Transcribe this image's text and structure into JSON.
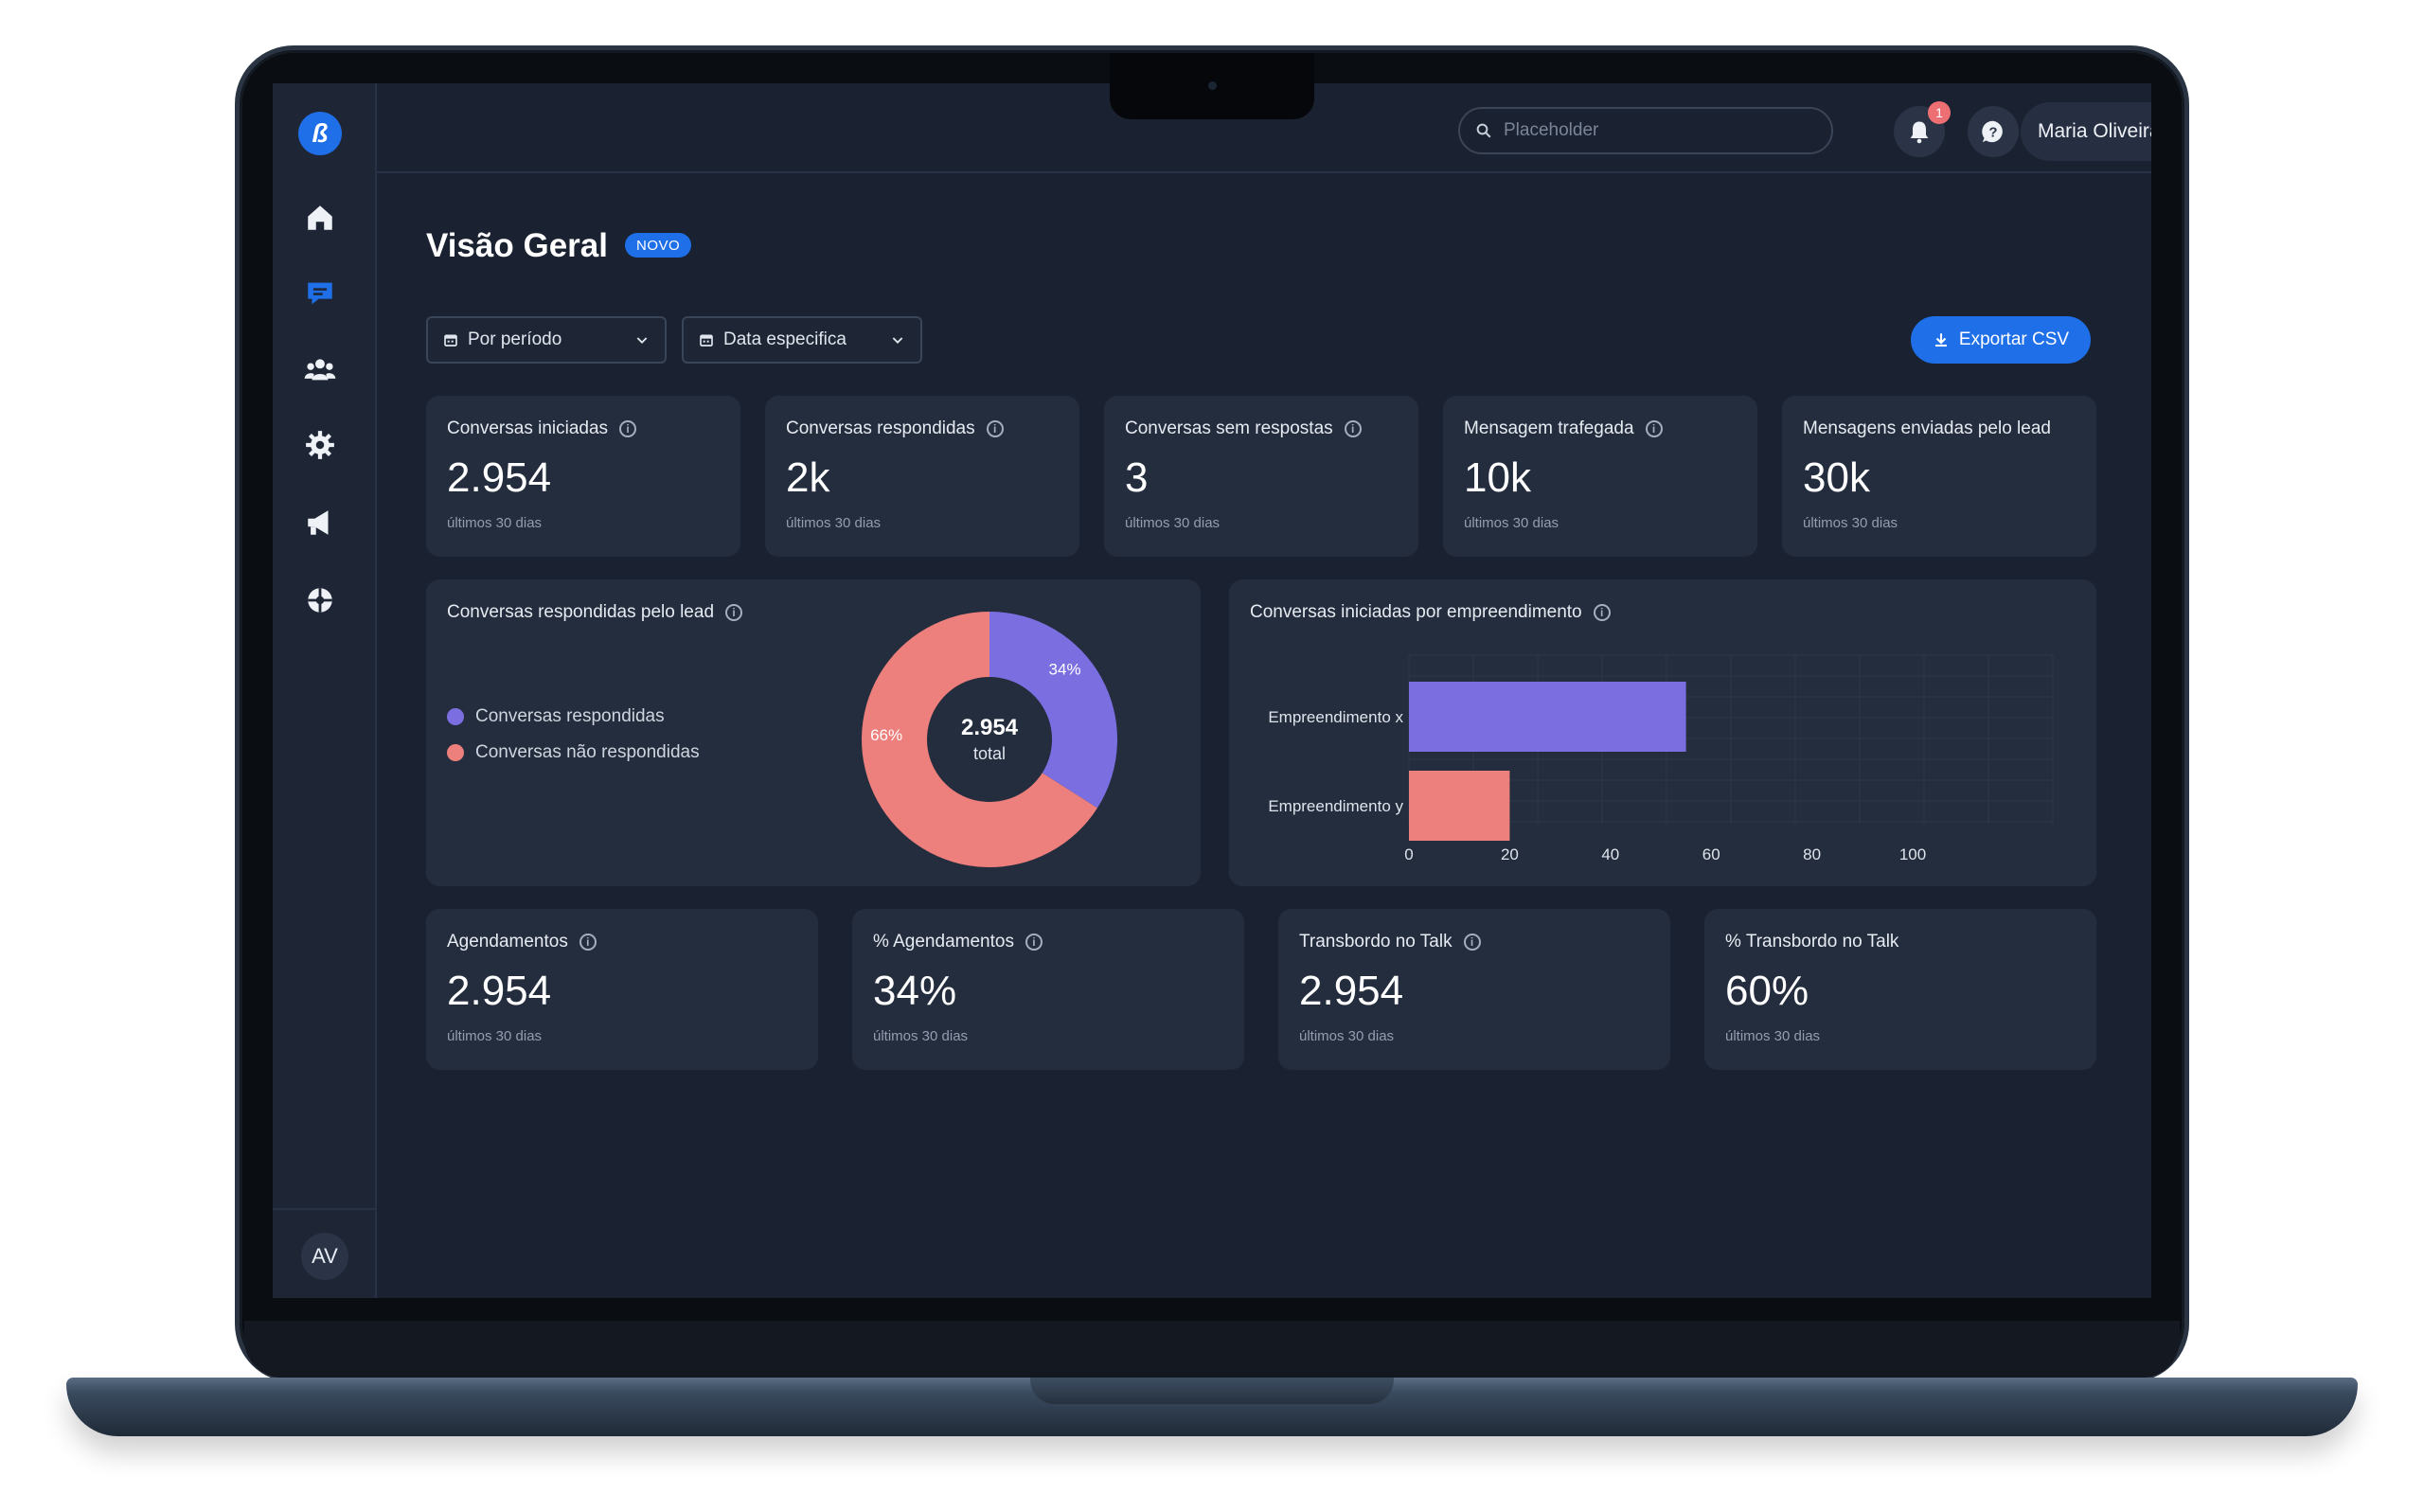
{
  "colors": {
    "accent": "#1f6fe8",
    "purple": "#7b6ee0",
    "salmon": "#ed7f7c",
    "background": "#1a2130",
    "card": "#242d3e"
  },
  "topbar": {
    "search_placeholder": "Placeholder",
    "notification_count": "1",
    "user_name": "Maria Oliveira"
  },
  "sidebar": {
    "items": [
      "home-icon",
      "chat-icon",
      "users-icon",
      "gear-icon",
      "megaphone-icon",
      "integrations-icon"
    ],
    "avatar_initials": "AV"
  },
  "header": {
    "title": "Visão Geral",
    "tag": "NOVO"
  },
  "filters": {
    "period_label": "Por período",
    "date_label": "Data especifica",
    "export_label": "Exportar CSV"
  },
  "kpis_top": [
    {
      "label": "Conversas iniciadas",
      "value": "2.954",
      "sub": "últimos 30 dias",
      "info": true
    },
    {
      "label": "Conversas respondidas",
      "value": "2k",
      "sub": "últimos 30 dias",
      "info": true
    },
    {
      "label": "Conversas sem respostas",
      "value": "3",
      "sub": "últimos 30 dias",
      "info": true
    },
    {
      "label": "Mensagem trafegada",
      "value": "10k",
      "sub": "últimos 30 dias",
      "info": true
    },
    {
      "label": "Mensagens enviadas pelo lead",
      "value": "30k",
      "sub": "últimos 30 dias",
      "info": false
    }
  ],
  "kpis_bottom": [
    {
      "label": "Agendamentos",
      "value": "2.954",
      "sub": "últimos 30 dias",
      "info": true
    },
    {
      "label": "% Agendamentos",
      "value": "34%",
      "sub": "últimos 30 dias",
      "info": true
    },
    {
      "label": "Transbordo no Talk",
      "value": "2.954",
      "sub": "últimos 30 dias",
      "info": true
    },
    {
      "label": "% Transbordo no Talk",
      "value": "60%",
      "sub": "últimos 30 dias",
      "info": false
    }
  ],
  "donut_panel": {
    "title": "Conversas respondidas pelo lead",
    "center_value": "2.954",
    "center_label": "total",
    "legend": [
      "Conversas respondidas",
      "Conversas não respondidas"
    ]
  },
  "bar_panel": {
    "title": "Conversas iniciadas por empreendimento"
  },
  "chart_data": [
    {
      "type": "pie",
      "labels": [
        "Conversas respondidas",
        "Conversas não respondidas"
      ],
      "values": [
        34,
        66
      ],
      "value_labels": [
        "34%",
        "66%"
      ],
      "colors": [
        "#7b6ee0",
        "#ed7f7c"
      ]
    },
    {
      "type": "bar",
      "orientation": "horizontal",
      "categories": [
        "Empreendimento x",
        "Empreendimento y"
      ],
      "values": [
        55,
        20
      ],
      "colors": [
        "#7b6ee0",
        "#ed7f7c"
      ],
      "xlim": [
        0,
        100
      ],
      "xticks": [
        0,
        20,
        40,
        60,
        80,
        100
      ],
      "grid": true
    }
  ]
}
